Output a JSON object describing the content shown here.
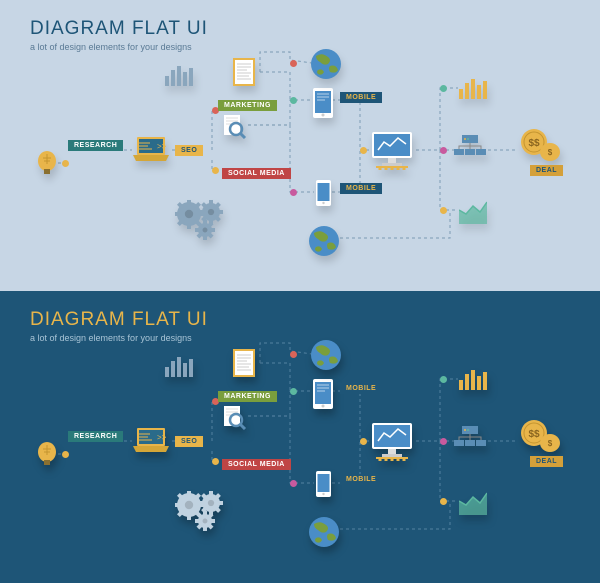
{
  "title": "DIAGRAM FLAT UI",
  "subtitle": "a lot of design elements for your designs",
  "panels": {
    "light": {
      "bg": "#c7d6e5",
      "title_color": "#1e5577",
      "subtitle_color": "#5a7a95",
      "line_color": "#8aa6bd"
    },
    "dark": {
      "bg": "#1e5577",
      "title_color": "#e8b54a",
      "subtitle_color": "#a8c4d6",
      "line_color": "#4a7a99"
    }
  },
  "labels": {
    "research": "RESEARCH",
    "seo": "SEO",
    "marketing": "MARKETING",
    "social_media": "SOCIAL MEDIA",
    "mobile1": "MOBILE",
    "mobile2": "MOBILE",
    "deal": "DEAL"
  },
  "label_colors": {
    "research": {
      "bg": "#2a7a7a",
      "fg": "#fff"
    },
    "seo": {
      "bg": "#e8b54a",
      "fg": "#1e5577"
    },
    "marketing": {
      "bg": "#7a9e3d",
      "fg": "#fff"
    },
    "social_media": {
      "bg": "#c04545",
      "fg": "#fff"
    },
    "mobile": {
      "bg": "#1e5577",
      "fg": "#e8b54a"
    },
    "deal": {
      "bg": "#d4a03a",
      "fg": "#1e5577"
    }
  },
  "dot_colors": [
    "#e8b54a",
    "#d96459",
    "#5cb8a0",
    "#c85a9e",
    "#4a8dc7"
  ],
  "icon_colors": {
    "bulb": "#e8b54a",
    "laptop": "#e8b54a",
    "laptop_screen": "#2a6b8a",
    "doc": "#e8b54a",
    "mobile": "#ffffff",
    "tablet": "#ffffff",
    "gear": "#8aa6bd",
    "gear_dark": "#c0d2e0",
    "globe_land": "#7a9e3d",
    "globe_sea": "#4a8dc7",
    "monitor": "#ffffff",
    "monitor_screen": "#4a8dc7",
    "server": "#5a8db5",
    "magnify": "#5a8db5",
    "coin": "#e8b54a",
    "coin_symbol": "$$",
    "chart_bar": "#5cb8a0",
    "chart_bar2": "#e8b54a"
  },
  "type": "infographic",
  "structure": "flowchart",
  "layout_desc": "Two stacked variants (light/dark) of same horizontal flow: bulb→research→laptop/seo→marketing docs/gears→mobile+tablet+monitor+globes→charts/server→coins/deal"
}
